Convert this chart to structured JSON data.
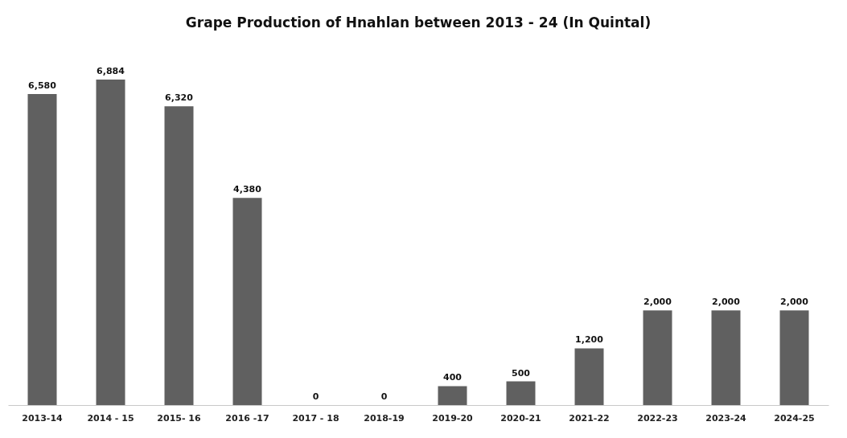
{
  "chart_data": {
    "type": "bar",
    "title": "Grape Production of Hnahlan between 2013 - 24 (In Quintal)",
    "categories": [
      "2013-14",
      "2014 - 15",
      "2015- 16",
      "2016 -17",
      "2017 - 18",
      "2018-19",
      "2019-20",
      "2020-21",
      "2021-22",
      "2022-23",
      "2023-24",
      "2024-25"
    ],
    "values": [
      6580,
      6884,
      6320,
      4380,
      0,
      0,
      400,
      500,
      1200,
      2000,
      2000,
      2000
    ],
    "value_labels": [
      "6,580",
      "6,884",
      "6,320",
      "4,380",
      "0",
      "0",
      "400",
      "500",
      "1,200",
      "2,000",
      "2,000",
      "2,000"
    ],
    "color": "#606060"
  }
}
